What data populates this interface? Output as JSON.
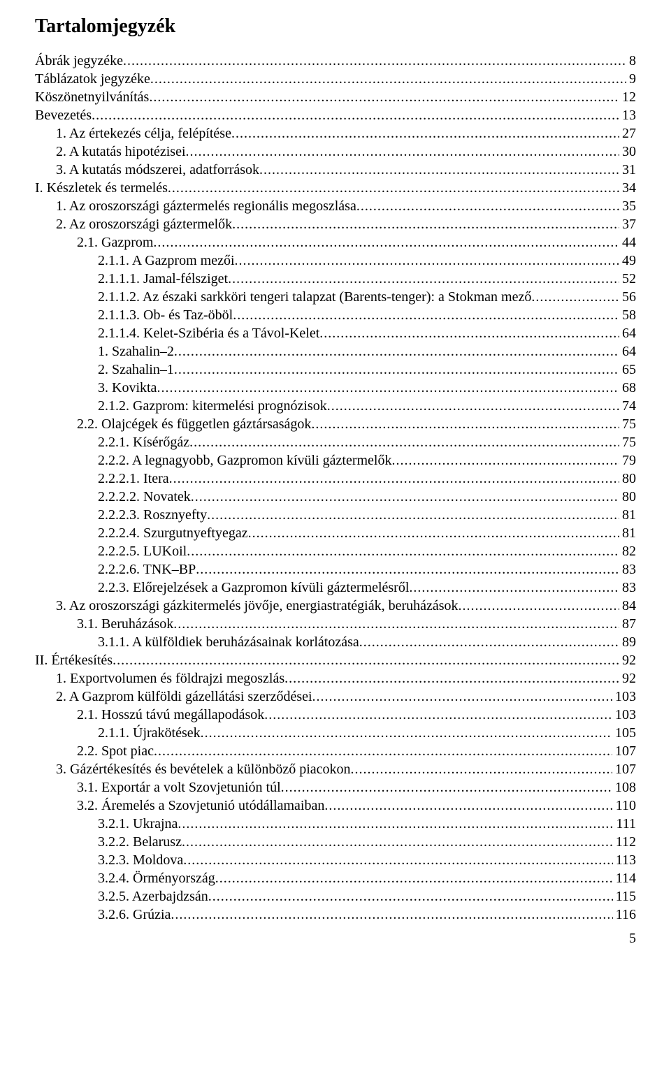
{
  "title": "Tartalomjegyzék",
  "page_number": "5",
  "font": {
    "family": "Times New Roman",
    "body_size_pt": 15,
    "title_size_pt": 21,
    "title_weight": "bold",
    "color": "#000000",
    "background_color": "#ffffff"
  },
  "toc": [
    {
      "indent": 0,
      "label": "Ábrák jegyzéke",
      "page": "8"
    },
    {
      "indent": 0,
      "label": "Táblázatok jegyzéke",
      "page": "9"
    },
    {
      "indent": 0,
      "label": "Köszönetnyilvánítás",
      "page": "12"
    },
    {
      "indent": 0,
      "label": "Bevezetés",
      "page": "13"
    },
    {
      "indent": 1,
      "label": "1. Az értekezés célja, felépítése",
      "page": "27"
    },
    {
      "indent": 1,
      "label": "2. A kutatás hipotézisei",
      "page": "30"
    },
    {
      "indent": 1,
      "label": "3. A kutatás módszerei, adatforrások",
      "page": "31"
    },
    {
      "indent": 0,
      "label": "I. Készletek és termelés",
      "page": "34"
    },
    {
      "indent": 1,
      "label": "1. Az oroszországi gáztermelés regionális megoszlása",
      "page": "35"
    },
    {
      "indent": 1,
      "label": "2. Az oroszországi gáztermelők",
      "page": "37"
    },
    {
      "indent": 2,
      "label": "2.1. Gazprom",
      "page": "44"
    },
    {
      "indent": 3,
      "label": "2.1.1. A Gazprom mezői",
      "page": "49"
    },
    {
      "indent": 3,
      "label": "2.1.1.1. Jamal-félsziget",
      "page": "52"
    },
    {
      "indent": 3,
      "label": "2.1.1.2. Az északi sarkköri tengeri talapzat (Barents-tenger): a Stokman mező",
      "page": "56"
    },
    {
      "indent": 3,
      "label": "2.1.1.3. Ob- és Taz-öböl",
      "page": "58"
    },
    {
      "indent": 3,
      "label": "2.1.1.4. Kelet-Szibéria és a Távol-Kelet",
      "page": "64"
    },
    {
      "indent": 3,
      "label": "1. Szahalin–2",
      "page": "64"
    },
    {
      "indent": 3,
      "label": "2. Szahalin–1",
      "page": "65"
    },
    {
      "indent": 3,
      "label": "3. Kovikta",
      "page": "68"
    },
    {
      "indent": 3,
      "label": "2.1.2. Gazprom: kitermelési prognózisok",
      "page": "74"
    },
    {
      "indent": 2,
      "label": "2.2. Olajcégek és független gáztársaságok",
      "page": "75"
    },
    {
      "indent": 3,
      "label": "2.2.1. Kísérőgáz",
      "page": "75"
    },
    {
      "indent": 3,
      "label": "2.2.2. A legnagyobb, Gazpromon kívüli gáztermelők",
      "page": "79"
    },
    {
      "indent": 3,
      "label": "2.2.2.1. Itera",
      "page": "80"
    },
    {
      "indent": 3,
      "label": "2.2.2.2. Novatek",
      "page": "80"
    },
    {
      "indent": 3,
      "label": "2.2.2.3. Rosznyefty",
      "page": "81"
    },
    {
      "indent": 3,
      "label": "2.2.2.4. Szurgutnyeftyegaz",
      "page": "81"
    },
    {
      "indent": 3,
      "label": "2.2.2.5. LUKoil",
      "page": "82"
    },
    {
      "indent": 3,
      "label": "2.2.2.6. TNK–BP",
      "page": "83"
    },
    {
      "indent": 3,
      "label": "2.2.3. Előrejelzések a Gazpromon kívüli gáztermelésről",
      "page": "83"
    },
    {
      "indent": 1,
      "label": "3. Az oroszországi gázkitermelés jövője, energiastratégiák, beruházások",
      "page": "84"
    },
    {
      "indent": 2,
      "label": "3.1. Beruházások",
      "page": "87"
    },
    {
      "indent": 3,
      "label": "3.1.1. A külföldiek beruházásainak korlátozása",
      "page": "89"
    },
    {
      "indent": 0,
      "label": "II. Értékesítés",
      "page": "92"
    },
    {
      "indent": 1,
      "label": "1. Exportvolumen és földrajzi megoszlás",
      "page": "92"
    },
    {
      "indent": 1,
      "label": "2. A Gazprom külföldi gázellátási szerződései",
      "page": "103"
    },
    {
      "indent": 2,
      "label": "2.1. Hosszú távú megállapodások",
      "page": "103"
    },
    {
      "indent": 3,
      "label": "2.1.1. Újrakötések",
      "page": "105"
    },
    {
      "indent": 2,
      "label": "2.2. Spot piac",
      "page": "107"
    },
    {
      "indent": 1,
      "label": "3. Gázértékesítés és bevételek a különböző piacokon",
      "page": "107"
    },
    {
      "indent": 2,
      "label": "3.1. Exportár a volt Szovjetunión túl",
      "page": "108"
    },
    {
      "indent": 2,
      "label": "3.2. Áremelés a Szovjetunió utódállamaiban",
      "page": "110"
    },
    {
      "indent": 3,
      "label": "3.2.1. Ukrajna",
      "page": "111"
    },
    {
      "indent": 3,
      "label": "3.2.2. Belarusz",
      "page": "112"
    },
    {
      "indent": 3,
      "label": "3.2.3. Moldova",
      "page": "113"
    },
    {
      "indent": 3,
      "label": "3.2.4. Örményország",
      "page": "114"
    },
    {
      "indent": 3,
      "label": "3.2.5. Azerbajdzsán",
      "page": "115"
    },
    {
      "indent": 3,
      "label": "3.2.6. Grúzia",
      "page": "116"
    }
  ]
}
